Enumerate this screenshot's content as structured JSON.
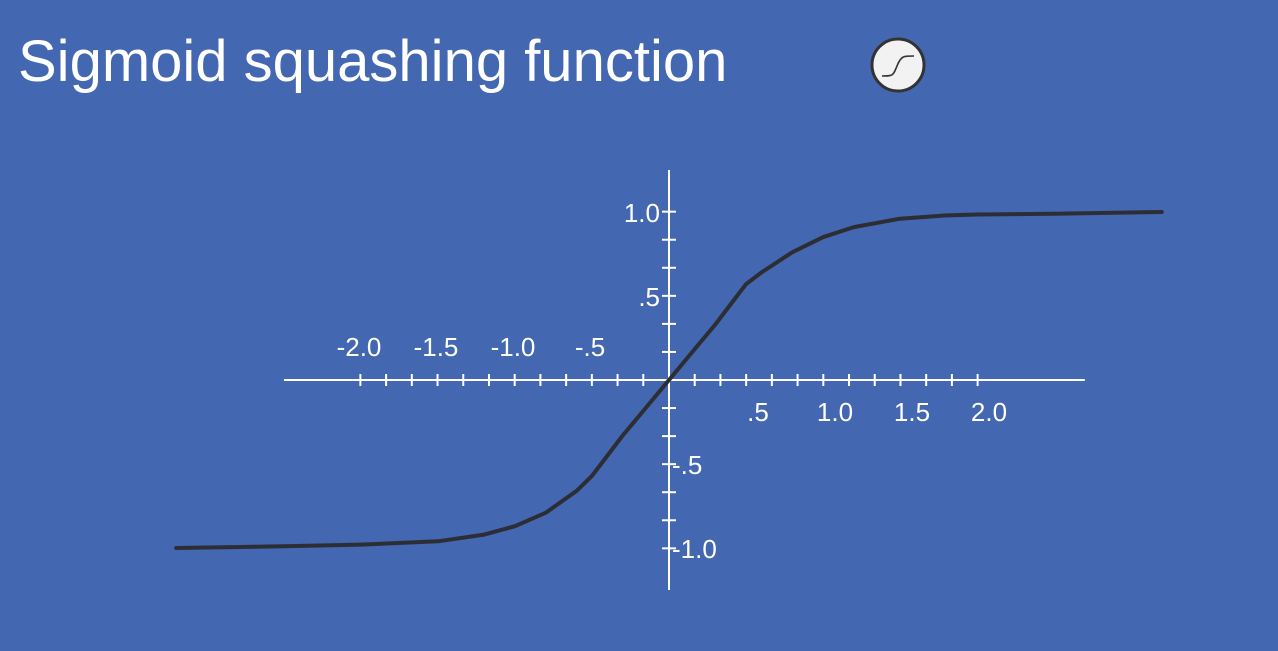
{
  "slide": {
    "title": "Sigmoid squashing function",
    "background_color": "#4367B0"
  },
  "icon": {
    "name": "sigmoid-neuron-icon",
    "fill": "#f2f2f2",
    "stroke": "#333333"
  },
  "chart_data": {
    "type": "line",
    "title": "",
    "xlabel": "",
    "ylabel": "",
    "xlim": [
      -2.5,
      2.7
    ],
    "ylim": [
      -1.25,
      1.25
    ],
    "x_tick_step": 0.167,
    "y_tick_step": 0.167,
    "x_tick_labels": [
      {
        "value": -2.0,
        "text": "-2.0"
      },
      {
        "value": -1.5,
        "text": "-1.5"
      },
      {
        "value": -1.0,
        "text": "-1.0"
      },
      {
        "value": -0.5,
        "text": "-.5"
      },
      {
        "value": 0.5,
        "text": ".5"
      },
      {
        "value": 1.0,
        "text": "1.0"
      },
      {
        "value": 1.5,
        "text": "1.5"
      },
      {
        "value": 2.0,
        "text": "2.0"
      }
    ],
    "y_tick_labels": [
      {
        "value": 1.0,
        "text": "1.0"
      },
      {
        "value": 0.5,
        "text": ".5"
      },
      {
        "value": -0.5,
        "text": "-.5"
      },
      {
        "value": -1.0,
        "text": "-1.0"
      }
    ],
    "series": [
      {
        "line_color": "#2d2d35",
        "x": [
          -3.2,
          -2.5,
          -2.0,
          -1.5,
          -1.2,
          -1.0,
          -0.8,
          -0.6,
          -0.5,
          -0.4,
          -0.3,
          -0.2,
          -0.1,
          0.0,
          0.1,
          0.2,
          0.3,
          0.4,
          0.5,
          0.6,
          0.8,
          1.0,
          1.2,
          1.5,
          1.8,
          2.0,
          2.5,
          3.2
        ],
        "y": [
          -1.0,
          -0.99,
          -0.98,
          -0.96,
          -0.92,
          -0.87,
          -0.79,
          -0.66,
          -0.57,
          -0.45,
          -0.33,
          -0.22,
          -0.11,
          0.0,
          0.11,
          0.22,
          0.33,
          0.45,
          0.57,
          0.64,
          0.76,
          0.85,
          0.91,
          0.96,
          0.98,
          0.985,
          0.99,
          1.0
        ]
      }
    ],
    "axis_color": "#ffffff",
    "grid": false
  }
}
